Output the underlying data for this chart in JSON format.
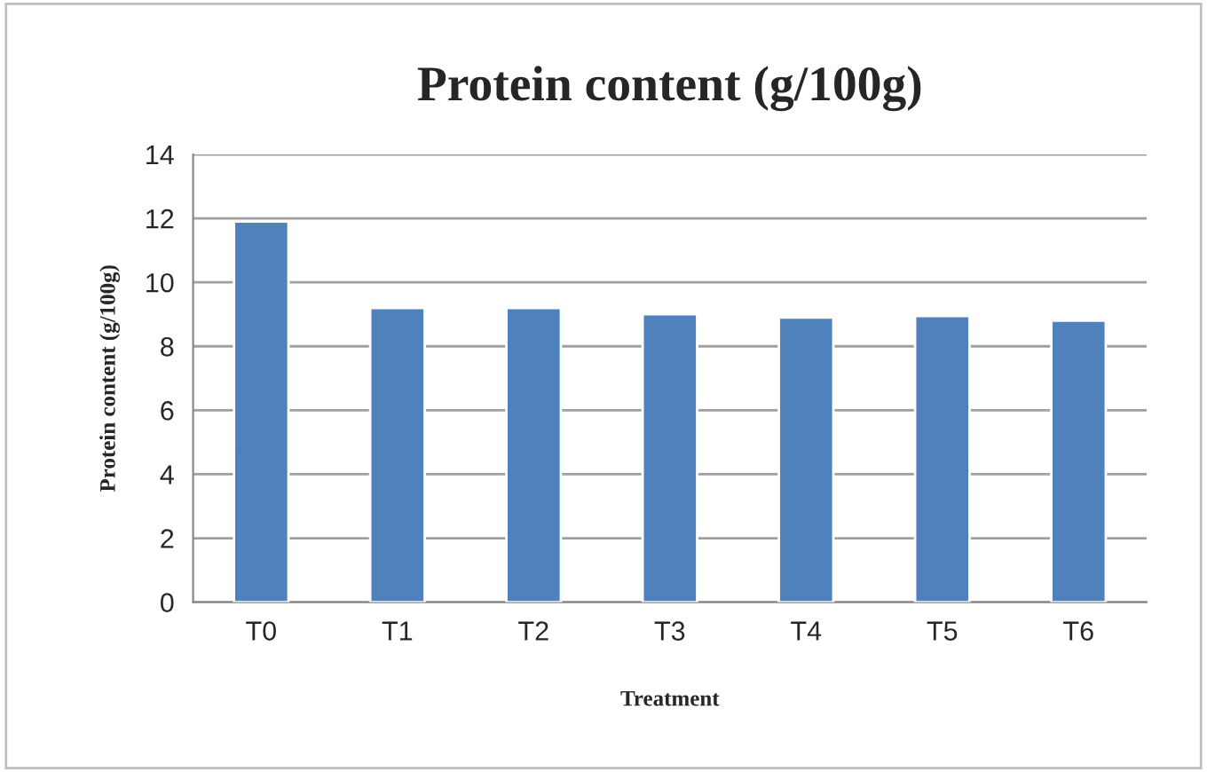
{
  "chart_data": {
    "type": "bar",
    "title": "Protein content (g/100g)",
    "xlabel": "Treatment",
    "ylabel": "Protein content (g/100g)",
    "categories": [
      "T0",
      "T1",
      "T2",
      "T3",
      "T4",
      "T5",
      "T6"
    ],
    "values": [
      11.9,
      9.2,
      9.2,
      9.0,
      8.9,
      8.95,
      8.8
    ],
    "color": "#4f81bd",
    "ylim": [
      0,
      14
    ],
    "yticks": [
      0,
      2,
      4,
      6,
      8,
      10,
      12,
      14
    ],
    "grid": "y"
  }
}
